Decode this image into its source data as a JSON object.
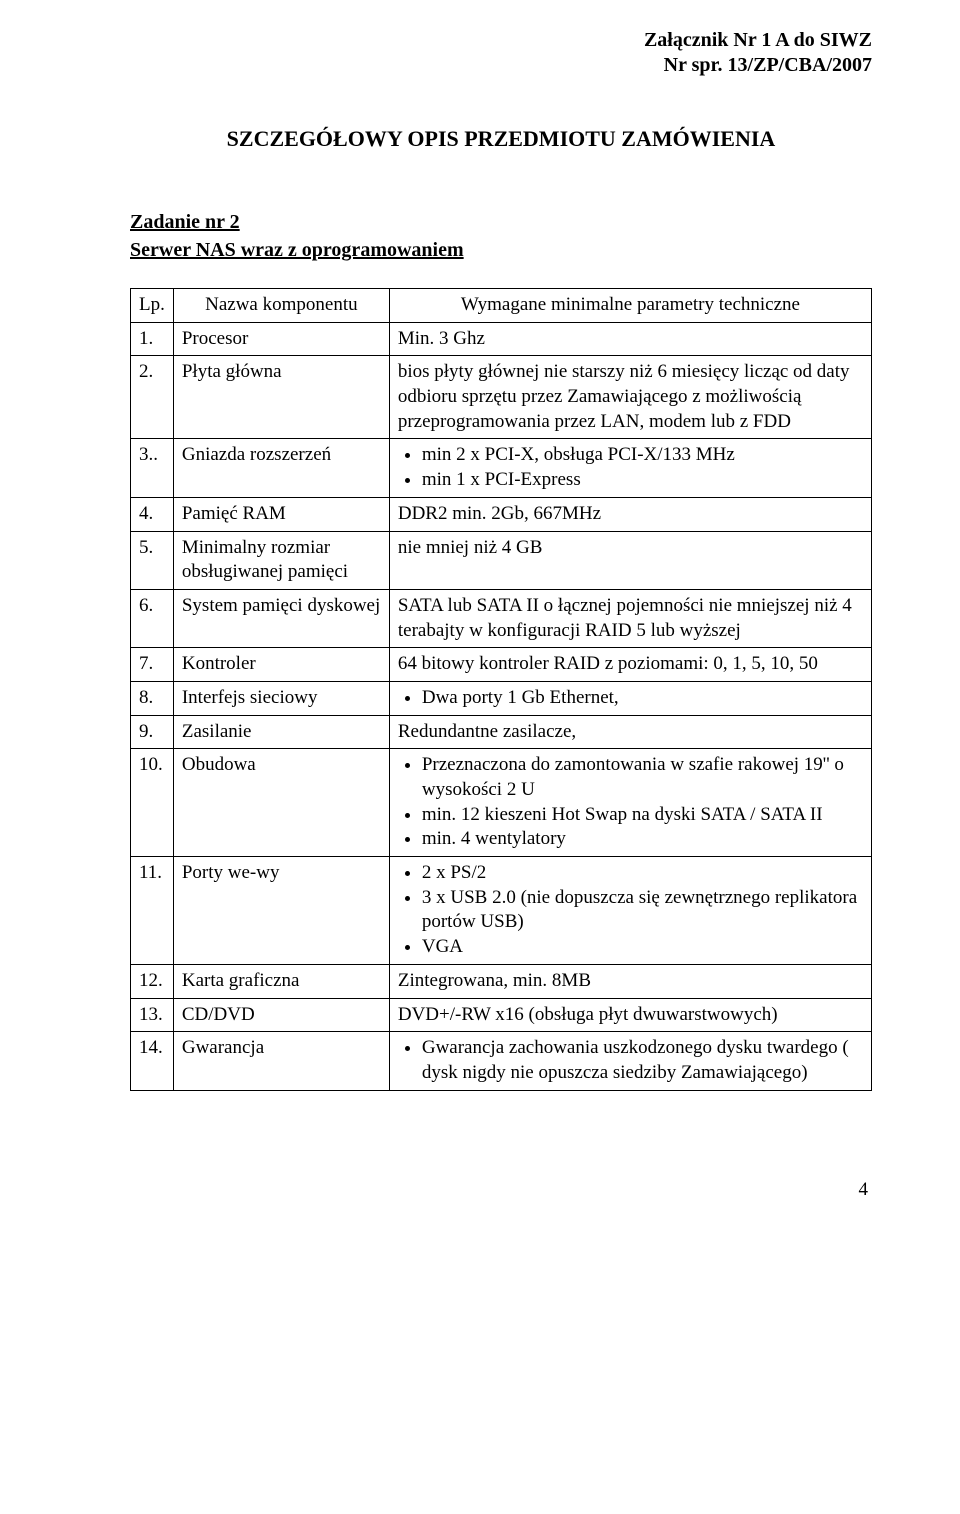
{
  "header": {
    "line1": "Załącznik Nr 1 A do SIWZ",
    "line2": "Nr spr. 13/ZP/CBA/2007"
  },
  "title": "SZCZEGÓŁOWY OPIS PRZEDMIOTU ZAMÓWIENIA",
  "task": {
    "line1": "Zadanie nr 2",
    "line2": "Serwer NAS wraz z oprogramowaniem"
  },
  "table": {
    "headers": {
      "lp": "Lp.",
      "name": "Nazwa komponentu",
      "req": "Wymagane minimalne parametry techniczne"
    },
    "rows": [
      {
        "lp": "1.",
        "name": "Procesor",
        "req_type": "text",
        "req_text": "Min. 3 Ghz"
      },
      {
        "lp": "2.",
        "name": "Płyta główna",
        "req_type": "text",
        "req_text": "bios płyty głównej nie starszy niż 6 miesięcy licząc od daty odbioru sprzętu przez Zamawiającego z możliwością przeprogramowania przez LAN, modem lub z FDD"
      },
      {
        "lp": "3..",
        "name": "Gniazda rozszerzeń",
        "req_type": "list",
        "req_list": [
          "min 2 x PCI-X, obsługa PCI-X/133 MHz",
          "min 1 x PCI-Express"
        ]
      },
      {
        "lp": "4.",
        "name": "Pamięć RAM",
        "req_type": "text",
        "req_text": "DDR2 min. 2Gb, 667MHz"
      },
      {
        "lp": "5.",
        "name": "Minimalny rozmiar obsługiwanej pamięci",
        "req_type": "text",
        "req_text": "nie mniej  niż 4 GB"
      },
      {
        "lp": "6.",
        "name": "System pamięci dyskowej",
        "req_type": "text",
        "req_text": "SATA lub SATA II o łącznej pojemności nie mniejszej niż 4 terabajty w konfiguracji RAID 5 lub wyższej"
      },
      {
        "lp": "7.",
        "name": "Kontroler",
        "req_type": "text",
        "req_text": "64 bitowy kontroler RAID z poziomami: 0, 1, 5, 10, 50"
      },
      {
        "lp": "8.",
        "name": "Interfejs sieciowy",
        "req_type": "list",
        "req_list": [
          "Dwa porty 1 Gb Ethernet,"
        ]
      },
      {
        "lp": "9.",
        "name": "Zasilanie",
        "req_type": "text",
        "req_text": "Redundantne zasilacze,"
      },
      {
        "lp": "10.",
        "name": "Obudowa",
        "req_type": "list",
        "req_list": [
          "Przeznaczona do zamontowania w szafie rakowej 19'' o wysokości 2 U",
          "min. 12 kieszeni Hot Swap na dyski SATA  / SATA II",
          "min. 4 wentylatory"
        ]
      },
      {
        "lp": "11.",
        "name": "Porty we-wy",
        "req_type": "list",
        "req_list": [
          "2 x PS/2",
          "3 x USB 2.0 (nie dopuszcza się zewnętrznego replikatora portów USB)",
          "VGA"
        ]
      },
      {
        "lp": "12.",
        "name": "Karta graficzna",
        "req_type": "text",
        "req_text": "Zintegrowana, min. 8MB"
      },
      {
        "lp": "13.",
        "name": "CD/DVD",
        "req_type": "text",
        "req_text": "DVD+/-RW x16 (obsługa płyt dwuwarstwowych)"
      },
      {
        "lp": "14.",
        "name": "Gwarancja",
        "req_type": "list",
        "req_list": [
          "Gwarancja zachowania uszkodzonego dysku twardego ( dysk nigdy nie opuszcza siedziby Zamawiającego)"
        ]
      }
    ]
  },
  "page_number": "4"
}
